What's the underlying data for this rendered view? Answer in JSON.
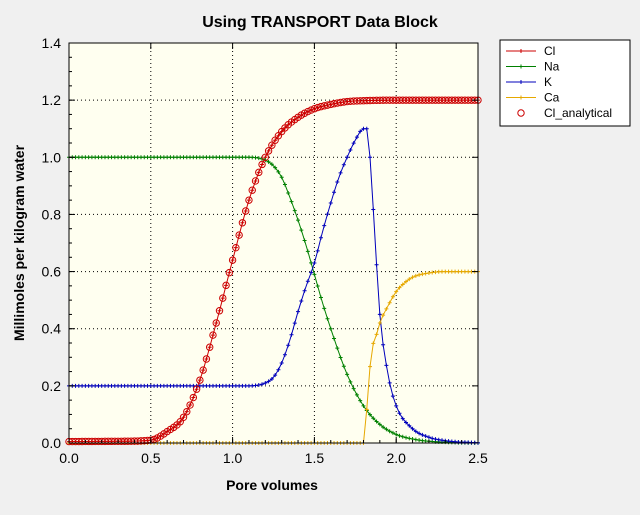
{
  "chart_data": {
    "type": "line",
    "title": "Using TRANSPORT Data Block",
    "xlabel": "Pore volumes",
    "ylabel": "Millimoles per kilogram water",
    "xlim": [
      0,
      2.5
    ],
    "ylim": [
      0,
      1.4
    ],
    "x_ticks": [
      "0.0",
      "0.5",
      "1.0",
      "1.5",
      "2.0",
      "2.5"
    ],
    "y_ticks": [
      "0.0",
      "0.2",
      "0.4",
      "0.6",
      "0.8",
      "1.0",
      "1.2",
      "1.4"
    ],
    "grid": true,
    "legend_position": "right",
    "plot_background": "#fffff0",
    "series": [
      {
        "name": "Cl",
        "color": "#cc0000",
        "marker": "plus",
        "x": [
          0.0,
          0.3,
          0.5,
          0.6,
          0.7,
          0.8,
          0.9,
          1.0,
          1.1,
          1.2,
          1.3,
          1.4,
          1.5,
          1.6,
          1.7,
          1.8,
          2.0,
          2.25,
          2.5
        ],
        "y": [
          0.005,
          0.006,
          0.01,
          0.04,
          0.09,
          0.22,
          0.42,
          0.64,
          0.85,
          1.0,
          1.09,
          1.14,
          1.17,
          1.185,
          1.195,
          1.198,
          1.2,
          1.2,
          1.2
        ]
      },
      {
        "name": "Na",
        "color": "#008000",
        "marker": "plus",
        "x": [
          0.0,
          0.5,
          1.0,
          1.1,
          1.2,
          1.25,
          1.3,
          1.35,
          1.4,
          1.45,
          1.5,
          1.55,
          1.6,
          1.7,
          1.8,
          1.9,
          2.0,
          2.1,
          2.2,
          2.3,
          2.4,
          2.5
        ],
        "y": [
          1.0,
          1.0,
          1.0,
          1.0,
          0.99,
          0.97,
          0.93,
          0.86,
          0.78,
          0.69,
          0.59,
          0.49,
          0.4,
          0.24,
          0.13,
          0.065,
          0.03,
          0.014,
          0.006,
          0.003,
          0.001,
          0.0
        ]
      },
      {
        "name": "K",
        "color": "#0000bb",
        "marker": "plus",
        "x": [
          0.0,
          0.5,
          1.0,
          1.1,
          1.2,
          1.25,
          1.3,
          1.35,
          1.4,
          1.45,
          1.5,
          1.55,
          1.6,
          1.65,
          1.7,
          1.75,
          1.8,
          1.82,
          1.84,
          1.87,
          1.9,
          1.95,
          2.0,
          2.1,
          2.2,
          2.3,
          2.4,
          2.5
        ],
        "y": [
          0.2,
          0.2,
          0.2,
          0.2,
          0.21,
          0.23,
          0.28,
          0.36,
          0.46,
          0.55,
          0.63,
          0.74,
          0.84,
          0.93,
          1.0,
          1.06,
          1.1,
          1.1,
          1.0,
          0.72,
          0.45,
          0.24,
          0.13,
          0.05,
          0.02,
          0.008,
          0.003,
          0.001
        ]
      },
      {
        "name": "Ca",
        "color": "#e6a800",
        "marker": "plus",
        "x": [
          0.0,
          1.0,
          1.8,
          1.81,
          1.83,
          1.85,
          1.88,
          1.9,
          1.95,
          2.0,
          2.05,
          2.1,
          2.2,
          2.3,
          2.4,
          2.5
        ],
        "y": [
          0.0,
          0.0,
          0.0,
          0.04,
          0.2,
          0.32,
          0.38,
          0.42,
          0.48,
          0.53,
          0.56,
          0.58,
          0.595,
          0.6,
          0.6,
          0.6
        ]
      },
      {
        "name": "Cl_analytical",
        "color": "#cc0000",
        "marker": "circle",
        "line": false,
        "x": [
          0.0,
          0.3,
          0.5,
          0.6,
          0.7,
          0.8,
          0.9,
          1.0,
          1.1,
          1.2,
          1.3,
          1.4,
          1.5,
          1.6,
          1.7,
          1.8,
          2.0,
          2.25,
          2.5
        ],
        "y": [
          0.005,
          0.006,
          0.01,
          0.04,
          0.09,
          0.22,
          0.42,
          0.64,
          0.85,
          1.0,
          1.09,
          1.14,
          1.17,
          1.185,
          1.195,
          1.198,
          1.2,
          1.2,
          1.2
        ]
      }
    ]
  }
}
